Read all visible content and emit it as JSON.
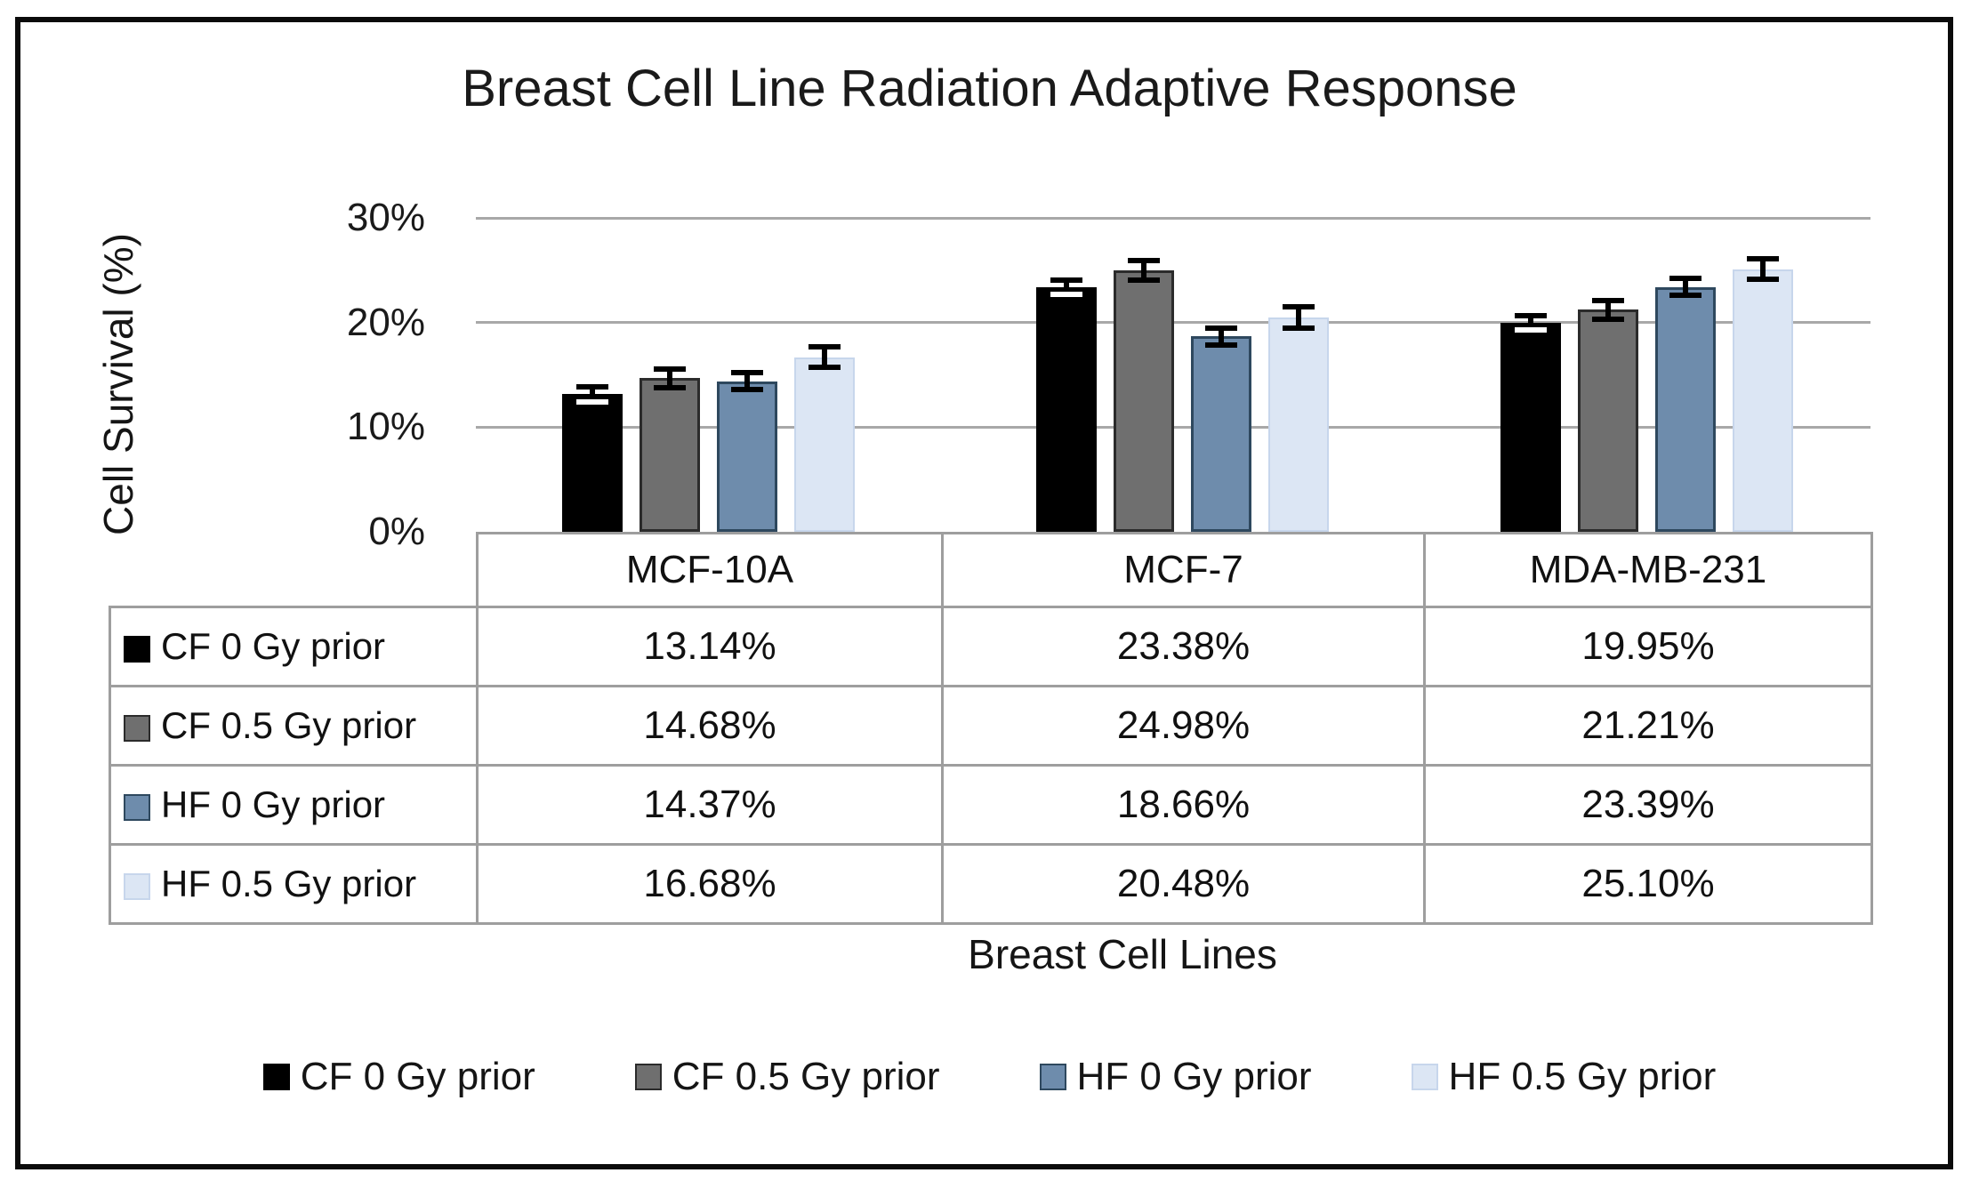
{
  "title": "Breast Cell Line Radiation Adaptive Response",
  "chart_data": {
    "type": "bar",
    "title": "Breast Cell Line Radiation Adaptive Response",
    "xlabel": "Breast Cell Lines",
    "ylabel": "Cell Survival (%)",
    "ylim": [
      0,
      30
    ],
    "grid": true,
    "legend_position": "bottom",
    "yticks": [
      {
        "label": "30%",
        "value": 30
      },
      {
        "label": "20%",
        "value": 20
      },
      {
        "label": "10%",
        "value": 10
      },
      {
        "label": "0%",
        "value": 0
      }
    ],
    "categories": [
      "MCF-10A",
      "MCF-7",
      "MDA-MB-231"
    ],
    "series": [
      {
        "name": "CF 0 Gy prior",
        "values": [
          13.14,
          23.38,
          19.95
        ],
        "display": [
          "13.14%",
          "23.38%",
          "19.95%"
        ],
        "error": 0.7,
        "color": "#000000",
        "border_color": "#000000",
        "border_width": 0
      },
      {
        "name": "CF 0.5 Gy prior",
        "values": [
          14.68,
          24.98,
          21.21
        ],
        "display": [
          "14.68%",
          "24.98%",
          "21.21%"
        ],
        "error": 0.9,
        "color": "#6f6f6f",
        "border_color": "#2b2b2b",
        "border_width": 3
      },
      {
        "name": "HF 0 Gy prior",
        "values": [
          14.37,
          18.66,
          23.39
        ],
        "display": [
          "14.37%",
          "18.66%",
          "23.39%"
        ],
        "error": 0.8,
        "color": "#6e8cac",
        "border_color": "#2e485e",
        "border_width": 3
      },
      {
        "name": "HF 0.5 Gy prior",
        "values": [
          16.68,
          20.48,
          25.1
        ],
        "display": [
          "16.68%",
          "20.48%",
          "25.10%"
        ],
        "error": 1.0,
        "color": "#dce6f4",
        "border_color": "#c7d6ec",
        "border_width": 2
      }
    ]
  }
}
